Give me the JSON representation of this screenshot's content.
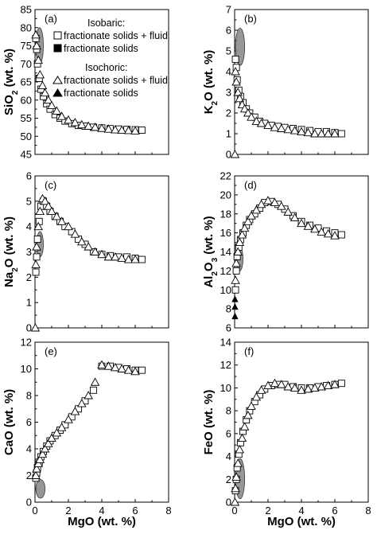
{
  "legend": {
    "isobaric_title": "Isobaric:",
    "isobaric_fluid": "fractionate solids + fluid",
    "isobaric_solids": "fractionate solids",
    "isochoric_title": "Isochoric:",
    "isochoric_fluid": "fractionate solids + fluid",
    "isochoric_solids": "fractionate solids"
  },
  "chart_data": [
    {
      "type": "scatter",
      "tag": "(a)",
      "ylabel": "SiO2 (wt. %)",
      "xlabel": "",
      "xlim": [
        0,
        8
      ],
      "ylim": [
        45,
        85
      ],
      "xticks": [],
      "yticks": [
        45,
        50,
        55,
        60,
        65,
        70,
        75,
        80,
        85
      ],
      "series": [
        {
          "name": "Isobaric: fractionate solids + fluid",
          "marker": "square-open",
          "x": [
            0.05,
            0.1,
            0.15,
            0.25,
            0.35,
            0.5,
            0.7,
            0.9,
            1.2,
            1.5,
            1.8,
            2.2,
            2.6,
            3.0,
            3.5,
            4.0,
            4.5,
            5.0,
            5.5,
            6.0,
            6.4
          ],
          "y": [
            77,
            74,
            70,
            66,
            63,
            61,
            59,
            57.5,
            56,
            55,
            54.2,
            53.5,
            53,
            52.8,
            52.5,
            52.3,
            52.1,
            52.0,
            51.9,
            51.8,
            51.7
          ]
        },
        {
          "name": "Isochoric: fractionate solids + fluid",
          "marker": "triangle-open",
          "x": [
            0.05,
            0.1,
            0.2,
            0.3,
            0.45,
            0.6,
            0.8,
            1.0,
            1.3,
            1.6,
            2.0,
            2.4,
            2.8,
            3.2,
            3.6,
            4.0,
            4.4,
            4.8,
            5.2,
            5.6,
            6.0
          ],
          "y": [
            78,
            75,
            71,
            67,
            64,
            62,
            60,
            58.5,
            57,
            55.5,
            54.5,
            53.8,
            53.2,
            52.8,
            52.5,
            52.2,
            52.0,
            51.8,
            51.7,
            51.6,
            51.5
          ]
        }
      ],
      "shaded_region": {
        "name": "fractionate solids",
        "x": [
          0.05,
          0.5
        ],
        "y": [
          70,
          80
        ]
      }
    },
    {
      "type": "scatter",
      "tag": "(b)",
      "ylabel": "K2O (wt. %)",
      "xlabel": "",
      "xlim": [
        0,
        8
      ],
      "ylim": [
        0,
        7
      ],
      "xticks": [],
      "yticks": [
        0,
        1,
        2,
        3,
        4,
        5,
        6,
        7
      ],
      "series": [
        {
          "name": "Isobaric: fractionate solids + fluid",
          "marker": "square-open",
          "x": [
            0.05,
            0.1,
            0.15,
            0.25,
            0.35,
            0.5,
            0.7,
            0.9,
            1.2,
            1.5,
            1.8,
            2.2,
            2.6,
            3.0,
            3.5,
            4.0,
            4.5,
            5.0,
            5.5,
            6.0,
            6.4
          ],
          "y": [
            4.6,
            4.2,
            3.6,
            3.1,
            2.8,
            2.5,
            2.2,
            2.0,
            1.8,
            1.6,
            1.5,
            1.4,
            1.35,
            1.3,
            1.25,
            1.2,
            1.15,
            1.1,
            1.1,
            1.05,
            1.0
          ]
        },
        {
          "name": "Isochoric: fractionate solids + fluid",
          "marker": "triangle-open",
          "x": [
            0.02,
            0.05,
            0.1,
            0.2,
            0.3,
            0.45,
            0.6,
            0.8,
            1.0,
            1.3,
            1.6,
            2.0,
            2.4,
            2.8,
            3.2,
            3.6,
            4.0,
            4.4,
            4.8,
            5.2,
            5.6,
            6.0
          ],
          "y": [
            0,
            4.0,
            3.5,
            3.0,
            2.7,
            2.4,
            2.2,
            2.0,
            1.8,
            1.6,
            1.5,
            1.4,
            1.3,
            1.25,
            1.2,
            1.15,
            1.1,
            1.05,
            1.0,
            1.0,
            1.0,
            1.0
          ]
        }
      ],
      "shaded_region": {
        "name": "fractionate solids",
        "x": [
          0.05,
          0.6
        ],
        "y": [
          4.3,
          6.1
        ]
      }
    },
    {
      "type": "scatter",
      "tag": "(c)",
      "ylabel": "Na2O (wt. %)",
      "xlabel": "",
      "xlim": [
        0,
        8
      ],
      "ylim": [
        0,
        6
      ],
      "xticks": [],
      "yticks": [
        0,
        1,
        2,
        3,
        4,
        5,
        6
      ],
      "series": [
        {
          "name": "Isobaric: fractionate solids + fluid",
          "marker": "square-open",
          "x": [
            0.05,
            0.1,
            0.15,
            0.25,
            0.35,
            0.5,
            0.7,
            0.9,
            1.2,
            1.5,
            1.8,
            2.2,
            2.6,
            3.0,
            3.5,
            4.0,
            4.5,
            5.0,
            5.5,
            6.0,
            6.4
          ],
          "y": [
            2.2,
            2.8,
            3.5,
            4.2,
            4.8,
            5.0,
            4.8,
            4.6,
            4.4,
            4.2,
            4.0,
            3.8,
            3.5,
            3.3,
            3.0,
            2.9,
            2.85,
            2.8,
            2.8,
            2.75,
            2.7
          ]
        },
        {
          "name": "Isochoric: fractionate solids + fluid",
          "marker": "triangle-open",
          "x": [
            0.02,
            0.05,
            0.1,
            0.2,
            0.3,
            0.45,
            0.6,
            0.8,
            1.0,
            1.3,
            1.6,
            2.0,
            2.4,
            2.8,
            3.2,
            3.6,
            4.0,
            4.4,
            4.8,
            5.2,
            5.6,
            6.0
          ],
          "y": [
            0,
            2.5,
            3.2,
            4.0,
            4.6,
            5.1,
            5.0,
            4.8,
            4.6,
            4.4,
            4.2,
            4.0,
            3.7,
            3.4,
            3.2,
            3.0,
            2.9,
            2.8,
            2.8,
            2.75,
            2.7,
            2.7
          ]
        }
      ],
      "shaded_region": {
        "name": "fractionate solids",
        "x": [
          0.1,
          0.5
        ],
        "y": [
          2.8,
          3.8
        ]
      }
    },
    {
      "type": "scatter",
      "tag": "(d)",
      "ylabel": "Al2O3 (wt. %)",
      "xlabel": "",
      "xlim": [
        0,
        8
      ],
      "ylim": [
        6,
        22
      ],
      "xticks": [],
      "yticks": [
        6,
        8,
        10,
        12,
        14,
        16,
        18,
        20,
        22
      ],
      "series": [
        {
          "name": "Isobaric: fractionate solids + fluid",
          "marker": "square-open",
          "x": [
            0.05,
            0.1,
            0.15,
            0.25,
            0.35,
            0.5,
            0.7,
            0.9,
            1.2,
            1.5,
            1.8,
            2.2,
            2.6,
            3.0,
            3.5,
            4.0,
            4.5,
            5.0,
            5.5,
            6.0,
            6.4
          ],
          "y": [
            10,
            12,
            13.5,
            14.5,
            15.3,
            16,
            16.8,
            17.4,
            18,
            18.6,
            19.2,
            19.3,
            19,
            18.5,
            17.8,
            17.2,
            16.8,
            16.5,
            16.2,
            16,
            15.8
          ]
        },
        {
          "name": "Isochoric: fractionate solids + fluid",
          "marker": "triangle-open",
          "x": [
            0.05,
            0.1,
            0.2,
            0.3,
            0.45,
            0.6,
            0.8,
            1.0,
            1.3,
            1.6,
            2.0,
            2.4,
            2.8,
            3.2,
            3.6,
            4.0,
            4.4,
            4.8,
            5.2,
            5.6,
            6.0
          ],
          "y": [
            11,
            12.8,
            14,
            15,
            15.8,
            16.5,
            17.2,
            17.8,
            18.4,
            19,
            19.4,
            19.2,
            18.8,
            18.2,
            17.6,
            17,
            16.7,
            16.4,
            16.1,
            15.9,
            15.7
          ]
        },
        {
          "name": "Isochoric: fractionate solids",
          "marker": "triangle-filled",
          "x": [
            0.02,
            0.02,
            0.02
          ],
          "y": [
            7.2,
            8.2,
            9.0
          ]
        }
      ],
      "shaded_region": {
        "name": "fractionate solids",
        "x": [
          0.1,
          0.5
        ],
        "y": [
          12,
          14.5
        ]
      }
    },
    {
      "type": "scatter",
      "tag": "(e)",
      "ylabel": "CaO (wt. %)",
      "xlabel": "MgO (wt. %)",
      "xlim": [
        0,
        8
      ],
      "ylim": [
        0,
        12
      ],
      "xticks": [
        0,
        2,
        4,
        6,
        8
      ],
      "yticks": [
        0,
        2,
        4,
        6,
        8,
        10,
        12
      ],
      "series": [
        {
          "name": "Isobaric: fractionate solids + fluid",
          "marker": "square-open",
          "x": [
            0.05,
            0.1,
            0.15,
            0.25,
            0.35,
            0.5,
            0.7,
            0.9,
            1.2,
            1.5,
            1.8,
            2.2,
            2.6,
            3.0,
            3.5,
            4.0,
            4.5,
            5.0,
            5.5,
            6.0,
            6.4
          ],
          "y": [
            1.8,
            2.2,
            2.6,
            3.0,
            3.4,
            3.8,
            4.2,
            4.6,
            5.0,
            5.4,
            5.8,
            6.4,
            7.0,
            7.6,
            8.4,
            10.2,
            10.2,
            10.1,
            10.0,
            9.9,
            9.9
          ]
        },
        {
          "name": "Isochoric: fractionate solids + fluid",
          "marker": "triangle-open",
          "x": [
            0.05,
            0.1,
            0.2,
            0.3,
            0.45,
            0.6,
            0.8,
            1.0,
            1.3,
            1.6,
            2.0,
            2.4,
            2.8,
            3.2,
            3.6,
            4.0,
            4.4,
            4.8,
            5.2,
            5.6,
            6.0
          ],
          "y": [
            2.0,
            2.5,
            2.9,
            3.2,
            3.6,
            4.0,
            4.4,
            4.8,
            5.2,
            5.6,
            6.2,
            6.8,
            7.4,
            8.0,
            9.0,
            10.3,
            10.2,
            10.1,
            10.0,
            9.9,
            9.8
          ]
        }
      ],
      "shaded_region": {
        "name": "fractionate solids",
        "x": [
          0.05,
          0.6
        ],
        "y": [
          0.3,
          1.7
        ]
      }
    },
    {
      "type": "scatter",
      "tag": "(f)",
      "ylabel": "FeO (wt. %)",
      "xlabel": "MgO (wt. %)",
      "xlim": [
        0,
        8
      ],
      "ylim": [
        0,
        14
      ],
      "xticks": [
        0,
        2,
        4,
        6,
        8
      ],
      "yticks": [
        0,
        2,
        4,
        6,
        8,
        10,
        12,
        14
      ],
      "series": [
        {
          "name": "Isobaric: fractionate solids + fluid",
          "marker": "square-open",
          "x": [
            0.05,
            0.1,
            0.15,
            0.25,
            0.35,
            0.5,
            0.7,
            0.9,
            1.2,
            1.5,
            1.8,
            2.2,
            2.6,
            3.0,
            3.5,
            4.0,
            4.5,
            5.0,
            5.5,
            6.0,
            6.4
          ],
          "y": [
            1.0,
            2.0,
            3.0,
            4.2,
            5.2,
            6.2,
            7.2,
            8.0,
            8.8,
            9.4,
            9.9,
            10.2,
            10.3,
            10.3,
            10.1,
            10.0,
            10.0,
            10.1,
            10.2,
            10.3,
            10.4
          ]
        },
        {
          "name": "Isochoric: fractionate solids + fluid",
          "marker": "triangle-open",
          "x": [
            0.02,
            0.05,
            0.1,
            0.2,
            0.3,
            0.45,
            0.6,
            0.8,
            1.0,
            1.3,
            1.6,
            2.0,
            2.4,
            2.8,
            3.2,
            3.6,
            4.0,
            4.4,
            4.8,
            5.2,
            5.6,
            6.0
          ],
          "y": [
            0,
            1.2,
            2.2,
            3.4,
            4.6,
            5.6,
            6.6,
            7.6,
            8.4,
            9.2,
            9.8,
            10.2,
            10.4,
            10.3,
            10.1,
            10.0,
            9.8,
            9.9,
            10.0,
            10.1,
            10.2,
            10.3
          ]
        }
      ],
      "shaded_region": {
        "name": "fractionate solids",
        "x": [
          0.05,
          0.6
        ],
        "y": [
          0.3,
          3.8
        ]
      }
    }
  ]
}
